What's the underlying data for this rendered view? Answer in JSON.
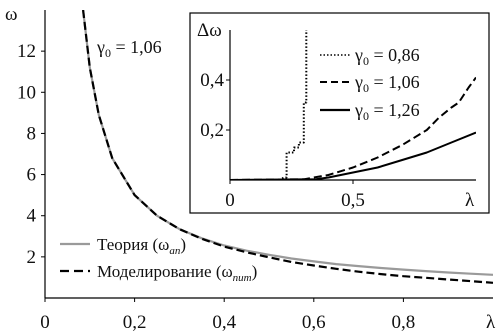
{
  "chart_data": [
    {
      "type": "line",
      "ylabel": "ω",
      "xlabel": "λ",
      "xlim": [
        0,
        1.0
      ],
      "ylim": [
        0,
        14
      ],
      "x_ticks": [
        "0",
        "0,2",
        "0,4",
        "0,6",
        "0,8"
      ],
      "y_ticks": [
        "2",
        "4",
        "6",
        "8",
        "10",
        "12"
      ],
      "annotation": {
        "text_main": "γ",
        "text_sub": "0",
        "text_value": " = 1,06"
      },
      "legend": [
        {
          "key": "theory",
          "label_main": "Теория (ω",
          "label_sub": "an",
          "label_end": ")",
          "style": "solid",
          "color": "#9a9a9a"
        },
        {
          "key": "model",
          "label_main": "Моделирование (ω",
          "label_sub": "num",
          "label_end": ")",
          "style": "dashed",
          "color": "#000000"
        }
      ],
      "grid": false,
      "series": [
        {
          "key": "theory",
          "style": "solid",
          "color": "#9a9a9a",
          "x": [
            0.085,
            0.1,
            0.12,
            0.15,
            0.2,
            0.25,
            0.3,
            0.35,
            0.4,
            0.45,
            0.5,
            0.55,
            0.6,
            0.65,
            0.7,
            0.75,
            0.8,
            0.85,
            0.9,
            0.95,
            1.0
          ],
          "y": [
            14.0,
            11.2,
            8.9,
            6.8,
            5.0,
            4.0,
            3.35,
            2.9,
            2.55,
            2.3,
            2.1,
            1.92,
            1.78,
            1.65,
            1.55,
            1.46,
            1.38,
            1.31,
            1.24,
            1.18,
            1.13
          ]
        },
        {
          "key": "model",
          "style": "dashed",
          "color": "#000000",
          "x": [
            0.085,
            0.1,
            0.12,
            0.15,
            0.2,
            0.25,
            0.3,
            0.35,
            0.4,
            0.45,
            0.5,
            0.55,
            0.6,
            0.65,
            0.7,
            0.75,
            0.8,
            0.85,
            0.9,
            0.95,
            1.0
          ],
          "y": [
            14.0,
            11.2,
            8.9,
            6.8,
            5.0,
            4.0,
            3.35,
            2.88,
            2.5,
            2.22,
            1.98,
            1.75,
            1.58,
            1.42,
            1.28,
            1.16,
            1.06,
            0.98,
            0.9,
            0.82,
            0.74
          ]
        }
      ]
    },
    {
      "type": "line",
      "ylabel": "Δω",
      "xlabel": "λ",
      "xlim": [
        0,
        1.0
      ],
      "ylim": [
        0,
        0.6
      ],
      "x_ticks": [
        "0",
        "0,5"
      ],
      "y_ticks": [
        "0,2",
        "0,4"
      ],
      "grid": false,
      "legend": [
        {
          "key": "g086",
          "label_main": "γ",
          "label_sub": "0",
          "label_value": " = 0,86",
          "style": "dotted"
        },
        {
          "key": "g106",
          "label_main": "γ",
          "label_sub": "0",
          "label_value": " = 1,06",
          "style": "dashed"
        },
        {
          "key": "g126",
          "label_main": "γ",
          "label_sub": "0",
          "label_value": " = 1,26",
          "style": "solid"
        }
      ],
      "series": [
        {
          "key": "g086",
          "style": "dotted",
          "x": [
            0.0,
            0.2,
            0.22,
            0.23,
            0.23,
            0.26,
            0.26,
            0.28,
            0.28,
            0.3,
            0.3,
            0.31,
            0.31
          ],
          "y": [
            0.0,
            0.0,
            0.01,
            0.01,
            0.11,
            0.11,
            0.13,
            0.13,
            0.15,
            0.15,
            0.31,
            0.31,
            0.6
          ]
        },
        {
          "key": "g106",
          "style": "dashed",
          "x": [
            0.0,
            0.3,
            0.4,
            0.5,
            0.6,
            0.7,
            0.8,
            0.85,
            0.9,
            0.93,
            0.95,
            0.97,
            1.0
          ],
          "y": [
            0.0,
            0.003,
            0.02,
            0.05,
            0.09,
            0.14,
            0.2,
            0.25,
            0.29,
            0.31,
            0.34,
            0.37,
            0.41
          ]
        },
        {
          "key": "g126",
          "style": "solid",
          "x": [
            0.0,
            0.35,
            0.4,
            0.5,
            0.6,
            0.7,
            0.8,
            0.9,
            1.0
          ],
          "y": [
            0.0,
            0.003,
            0.01,
            0.03,
            0.05,
            0.08,
            0.11,
            0.15,
            0.19
          ]
        }
      ]
    }
  ]
}
